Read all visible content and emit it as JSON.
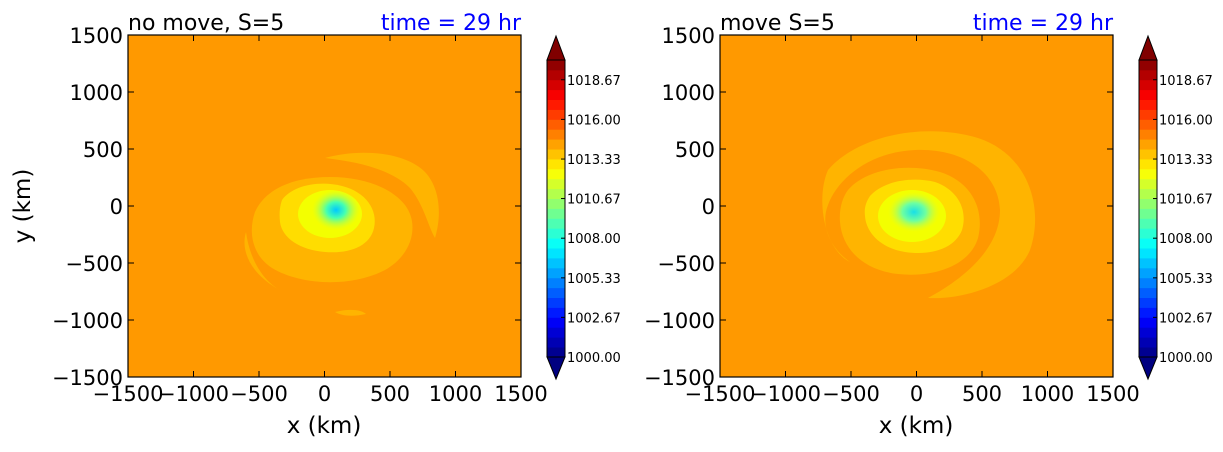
{
  "chart_data": [
    {
      "type": "heatmap",
      "title": "no move, S=5",
      "time_label": "time = 29 hr",
      "xlabel": "x (km)",
      "ylabel": "y (km)",
      "xlim": [
        -1500,
        1500
      ],
      "ylim": [
        -1500,
        1500
      ],
      "xticks": [
        "−1500",
        "−1000",
        "−500",
        "0",
        "500",
        "1000",
        "1500"
      ],
      "yticks": [
        "1500",
        "1000",
        "500",
        "0",
        "−500",
        "−1000",
        "−1500"
      ],
      "colorbar": {
        "min": 1000.0,
        "max": 1020.0,
        "ticks": [
          "1018.67",
          "1016.00",
          "1013.33",
          "1010.67",
          "1008.00",
          "1005.33",
          "1002.67",
          "1000.00"
        ],
        "extend": "both"
      },
      "field": {
        "background": 1016.0,
        "center_km": [
          100,
          -30
        ],
        "min_pressure": 1007.0
      }
    },
    {
      "type": "heatmap",
      "title": "move S=5",
      "time_label": "time = 29 hr",
      "xlabel": "x (km)",
      "ylabel": "",
      "xlim": [
        -1500,
        1500
      ],
      "ylim": [
        -1500,
        1500
      ],
      "xticks": [
        "−1500",
        "−1000",
        "−500",
        "0",
        "500",
        "1000",
        "1500"
      ],
      "yticks": [
        "1500",
        "1000",
        "500",
        "0",
        "−500",
        "−1000",
        "−1500"
      ],
      "colorbar": {
        "min": 1000.0,
        "max": 1020.0,
        "ticks": [
          "1018.67",
          "1016.00",
          "1013.33",
          "1010.67",
          "1008.00",
          "1005.33",
          "1002.67",
          "1000.00"
        ],
        "extend": "both"
      },
      "field": {
        "background": 1016.0,
        "center_km": [
          -20,
          -40
        ],
        "min_pressure": 1008.5
      }
    }
  ],
  "colors": {
    "title_time": "#0000ff",
    "background_field": "#ff9900",
    "outer_band": "#ffb400",
    "inner_band": "#ffdd00",
    "core": "#f3ff00",
    "eye": "#45ffb2"
  }
}
